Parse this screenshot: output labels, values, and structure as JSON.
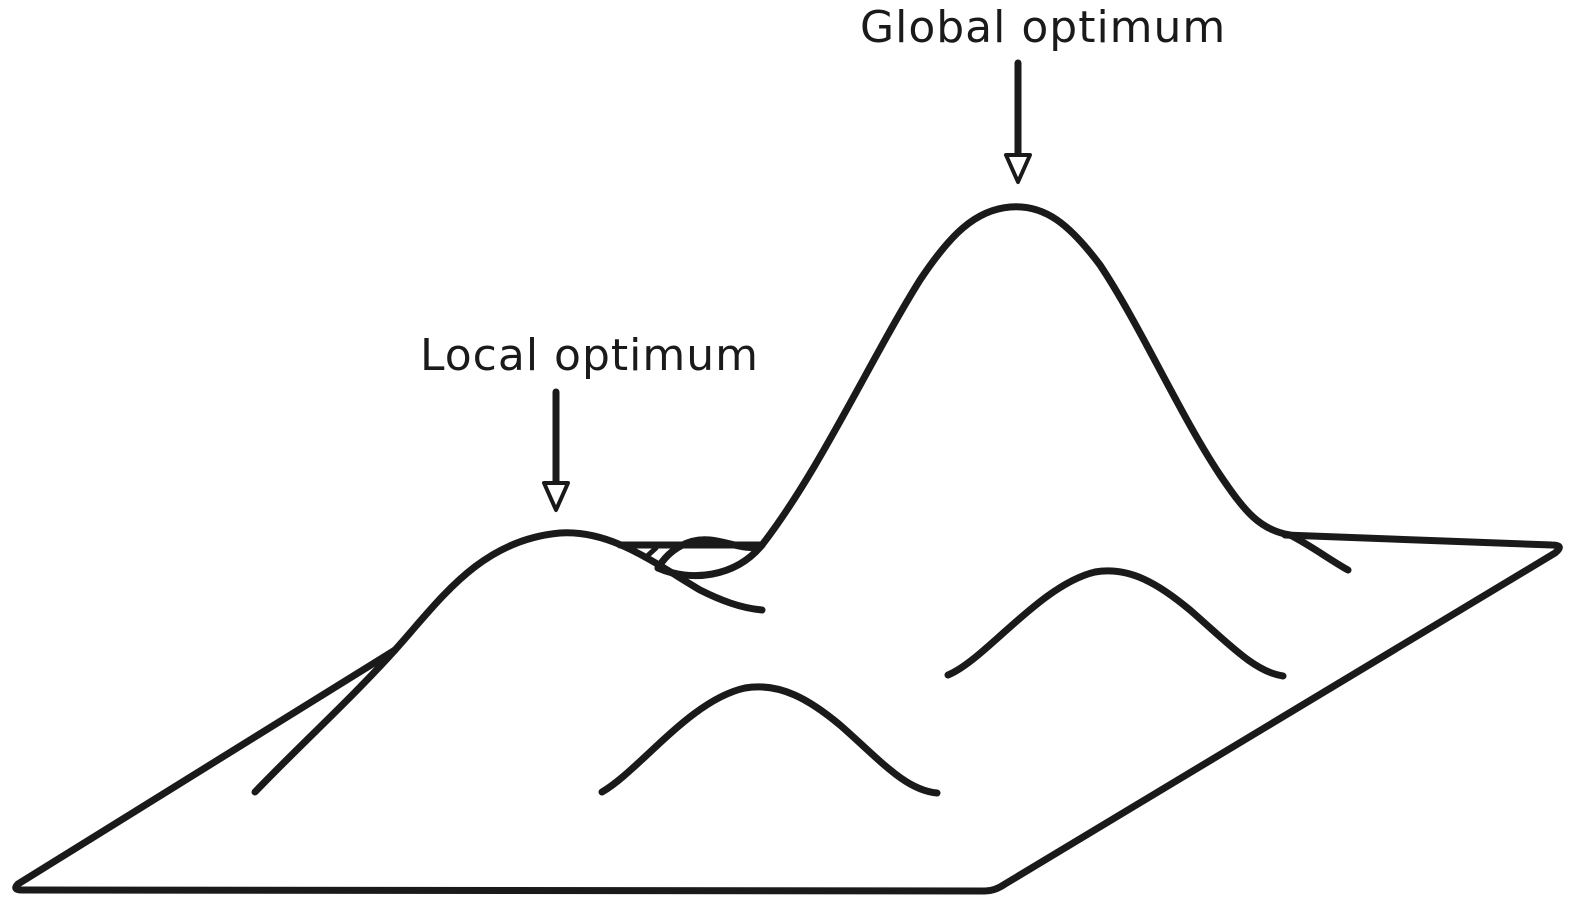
{
  "labels": {
    "global": "Global optimum",
    "local": "Local optimum"
  },
  "colors": {
    "ink": "#1a1a1a",
    "background": "#ffffff"
  }
}
